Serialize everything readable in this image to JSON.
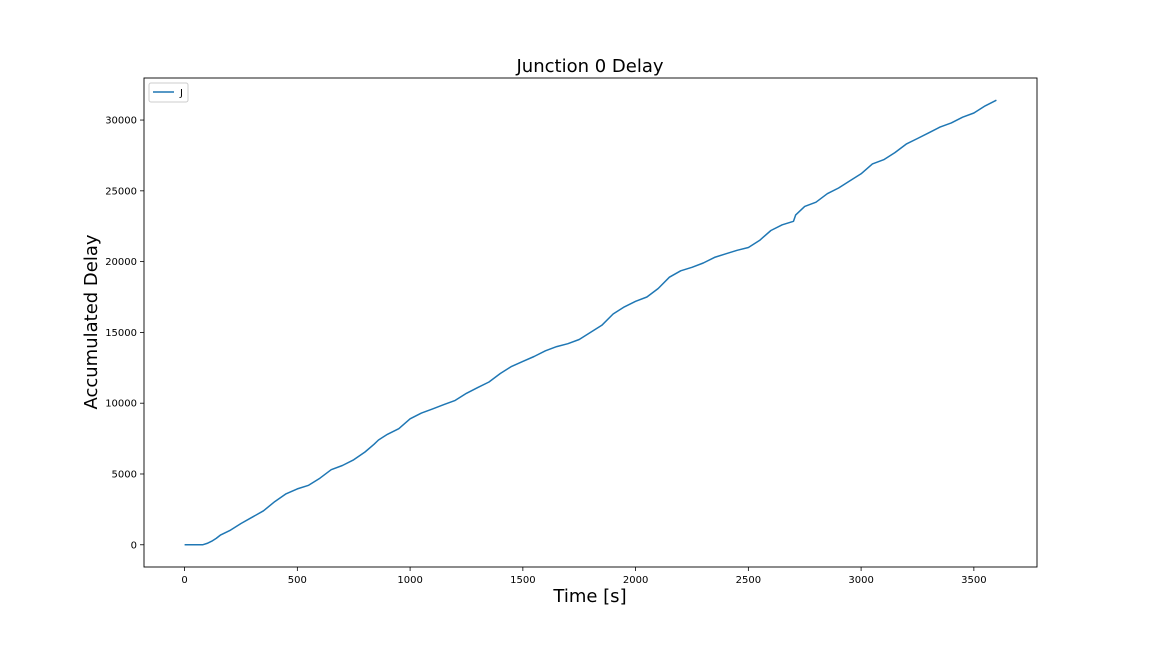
{
  "chart_data": {
    "type": "line",
    "title": "Junction 0 Delay",
    "xlabel": "Time [s]",
    "ylabel": "Accumulated Delay",
    "xlim": [
      -180,
      3780
    ],
    "ylim": [
      -1570,
      32970
    ],
    "xticks": [
      0,
      500,
      1000,
      1500,
      2000,
      2500,
      3000,
      3500
    ],
    "yticks": [
      0,
      5000,
      10000,
      15000,
      20000,
      25000,
      30000
    ],
    "grid": false,
    "legend_position": "top-left",
    "series": [
      {
        "name": "J",
        "color": "#1f77b4",
        "x": [
          0,
          80,
          100,
          120,
          140,
          160,
          200,
          250,
          300,
          350,
          400,
          450,
          500,
          550,
          600,
          650,
          700,
          750,
          800,
          840,
          860,
          900,
          950,
          1000,
          1050,
          1100,
          1150,
          1200,
          1250,
          1300,
          1350,
          1400,
          1450,
          1500,
          1550,
          1600,
          1650,
          1700,
          1750,
          1800,
          1850,
          1900,
          1950,
          2000,
          2050,
          2100,
          2150,
          2200,
          2250,
          2300,
          2350,
          2400,
          2450,
          2500,
          2550,
          2600,
          2650,
          2700,
          2710,
          2750,
          2800,
          2850,
          2900,
          2950,
          3000,
          3050,
          3100,
          3150,
          3200,
          3250,
          3300,
          3350,
          3400,
          3450,
          3500,
          3550,
          3600
        ],
        "y": [
          0,
          0,
          100,
          250,
          450,
          700,
          1000,
          1500,
          1950,
          2400,
          3050,
          3600,
          3950,
          4200,
          4700,
          5300,
          5600,
          6000,
          6550,
          7100,
          7400,
          7800,
          8200,
          8900,
          9300,
          9600,
          9900,
          10200,
          10700,
          11100,
          11500,
          12100,
          12600,
          12950,
          13300,
          13700,
          14000,
          14200,
          14500,
          15000,
          15500,
          16300,
          16800,
          17200,
          17500,
          18100,
          18900,
          19350,
          19600,
          19900,
          20300,
          20550,
          20800,
          21000,
          21500,
          22200,
          22600,
          22850,
          23300,
          23900,
          24200,
          24800,
          25200,
          25700,
          26200,
          26900,
          27200,
          27700,
          28300,
          28700,
          29100,
          29500,
          29800,
          30200,
          30500,
          31000,
          31400
        ]
      }
    ]
  }
}
